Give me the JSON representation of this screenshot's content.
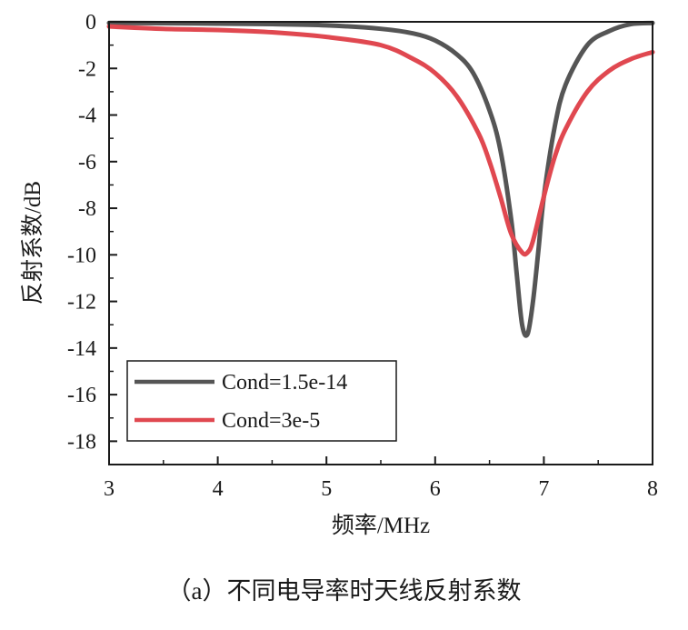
{
  "caption": "（a）不同电导率时天线反射系数",
  "chart_data": {
    "type": "line",
    "title": "",
    "xlabel": "频率/MHz",
    "ylabel": "反射系数/dB",
    "xlim": [
      3,
      8
    ],
    "ylim": [
      -19,
      0
    ],
    "x_ticks": [
      3,
      4,
      5,
      6,
      7,
      8
    ],
    "x_tick_labels": [
      "3",
      "4",
      "5",
      "6",
      "7",
      "8"
    ],
    "y_ticks": [
      0,
      -2,
      -4,
      -6,
      -8,
      -10,
      -12,
      -14,
      -16,
      -18
    ],
    "y_tick_labels": [
      "0",
      "-2",
      "-4",
      "-6",
      "-8",
      "-10",
      "-12",
      "-14",
      "-16",
      "-18"
    ],
    "grid": false,
    "legend_position": "bottom-left",
    "series": [
      {
        "name": "Cond=1.5e-14",
        "color": "#555555",
        "x": [
          3.0,
          3.5,
          4.0,
          4.5,
          5.0,
          5.5,
          5.8,
          6.0,
          6.2,
          6.35,
          6.5,
          6.6,
          6.7,
          6.75,
          6.8,
          6.85,
          6.9,
          6.95,
          7.0,
          7.1,
          7.2,
          7.4,
          7.6,
          7.8,
          8.0
        ],
        "y": [
          -0.05,
          -0.06,
          -0.08,
          -0.1,
          -0.15,
          -0.3,
          -0.5,
          -0.8,
          -1.4,
          -2.2,
          -3.8,
          -5.5,
          -8.5,
          -10.8,
          -13.0,
          -13.4,
          -12.0,
          -9.8,
          -7.5,
          -4.5,
          -2.7,
          -1.0,
          -0.4,
          -0.1,
          -0.05
        ]
      },
      {
        "name": "Cond=3e-5",
        "color": "#e04850",
        "x": [
          3.0,
          3.5,
          4.0,
          4.5,
          5.0,
          5.5,
          5.8,
          6.0,
          6.2,
          6.4,
          6.5,
          6.6,
          6.7,
          6.8,
          6.85,
          6.9,
          7.0,
          7.1,
          7.2,
          7.4,
          7.6,
          7.8,
          8.0
        ],
        "y": [
          -0.2,
          -0.3,
          -0.35,
          -0.45,
          -0.65,
          -1.0,
          -1.6,
          -2.2,
          -3.2,
          -4.8,
          -6.0,
          -7.5,
          -9.1,
          -9.9,
          -9.9,
          -9.4,
          -7.5,
          -5.8,
          -4.6,
          -3.0,
          -2.1,
          -1.6,
          -1.3
        ]
      }
    ]
  }
}
